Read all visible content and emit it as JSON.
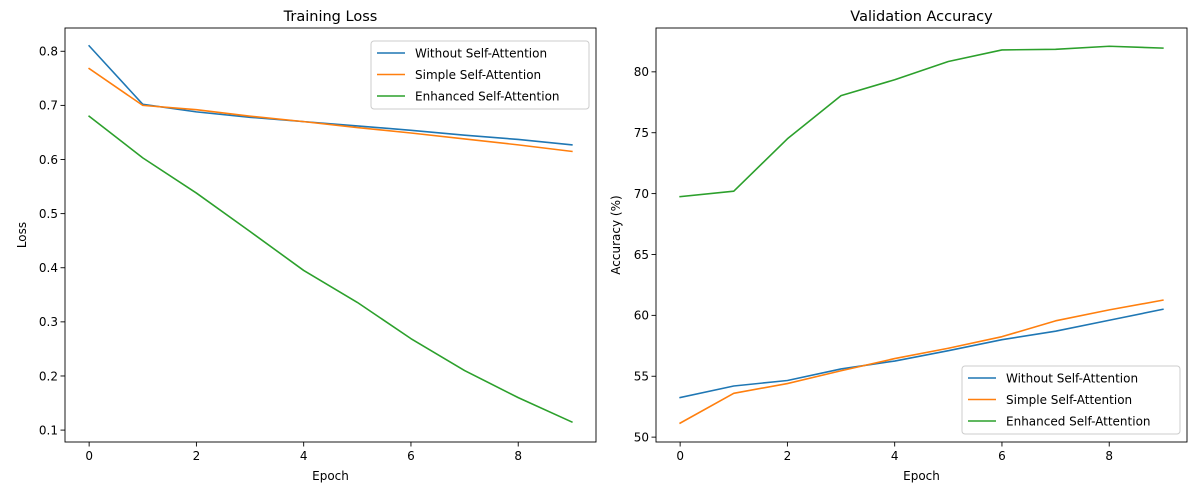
{
  "figure": {
    "background": "#ffffff",
    "series_colors": [
      "#1f77b4",
      "#ff7f0e",
      "#2ca02c"
    ]
  },
  "chart_data": [
    {
      "type": "line",
      "title": "Training Loss",
      "xlabel": "Epoch",
      "ylabel": "Loss",
      "x": [
        0,
        1,
        2,
        3,
        4,
        5,
        6,
        7,
        8,
        9
      ],
      "xlim": [
        -0.45,
        9.45
      ],
      "ylim": [
        0.078,
        0.843
      ],
      "xticks": [
        0,
        2,
        4,
        6,
        8
      ],
      "xtick_labels": [
        "0",
        "2",
        "4",
        "6",
        "8"
      ],
      "yticks": [
        0.1,
        0.2,
        0.3,
        0.4,
        0.5,
        0.6,
        0.7,
        0.8
      ],
      "ytick_labels": [
        "0.1",
        "0.2",
        "0.3",
        "0.4",
        "0.5",
        "0.6",
        "0.7",
        "0.8"
      ],
      "grid": false,
      "legend_position": "upper right",
      "series": [
        {
          "name": "Without Self-Attention",
          "color": "#1f77b4",
          "values": [
            0.81,
            0.702,
            0.688,
            0.678,
            0.67,
            0.662,
            0.654,
            0.645,
            0.637,
            0.627
          ]
        },
        {
          "name": "Simple Self-Attention",
          "color": "#ff7f0e",
          "values": [
            0.768,
            0.7,
            0.692,
            0.68,
            0.67,
            0.659,
            0.649,
            0.638,
            0.627,
            0.615
          ]
        },
        {
          "name": "Enhanced Self-Attention",
          "color": "#2ca02c",
          "values": [
            0.68,
            0.603,
            0.538,
            0.467,
            0.395,
            0.336,
            0.269,
            0.21,
            0.16,
            0.115
          ]
        }
      ]
    },
    {
      "type": "line",
      "title": "Validation Accuracy",
      "xlabel": "Epoch",
      "ylabel": "Accuracy (%)",
      "x": [
        0,
        1,
        2,
        3,
        4,
        5,
        6,
        7,
        8,
        9
      ],
      "xlim": [
        -0.45,
        9.45
      ],
      "ylim": [
        49.6,
        83.6
      ],
      "xticks": [
        0,
        2,
        4,
        6,
        8
      ],
      "xtick_labels": [
        "0",
        "2",
        "4",
        "6",
        "8"
      ],
      "yticks": [
        50,
        55,
        60,
        65,
        70,
        75,
        80
      ],
      "ytick_labels": [
        "50",
        "55",
        "60",
        "65",
        "70",
        "75",
        "80"
      ],
      "grid": false,
      "legend_position": "lower right",
      "series": [
        {
          "name": "Without Self-Attention",
          "color": "#1f77b4",
          "values": [
            53.25,
            54.2,
            54.65,
            55.6,
            56.25,
            57.1,
            58.0,
            58.7,
            59.6,
            60.5
          ]
        },
        {
          "name": "Simple Self-Attention",
          "color": "#ff7f0e",
          "values": [
            51.15,
            53.6,
            54.4,
            55.45,
            56.45,
            57.3,
            58.25,
            59.55,
            60.45,
            61.25
          ]
        },
        {
          "name": "Enhanced Self-Attention",
          "color": "#2ca02c",
          "values": [
            69.75,
            70.2,
            74.5,
            78.05,
            79.35,
            80.85,
            81.8,
            81.85,
            82.1,
            81.95
          ]
        }
      ]
    }
  ]
}
